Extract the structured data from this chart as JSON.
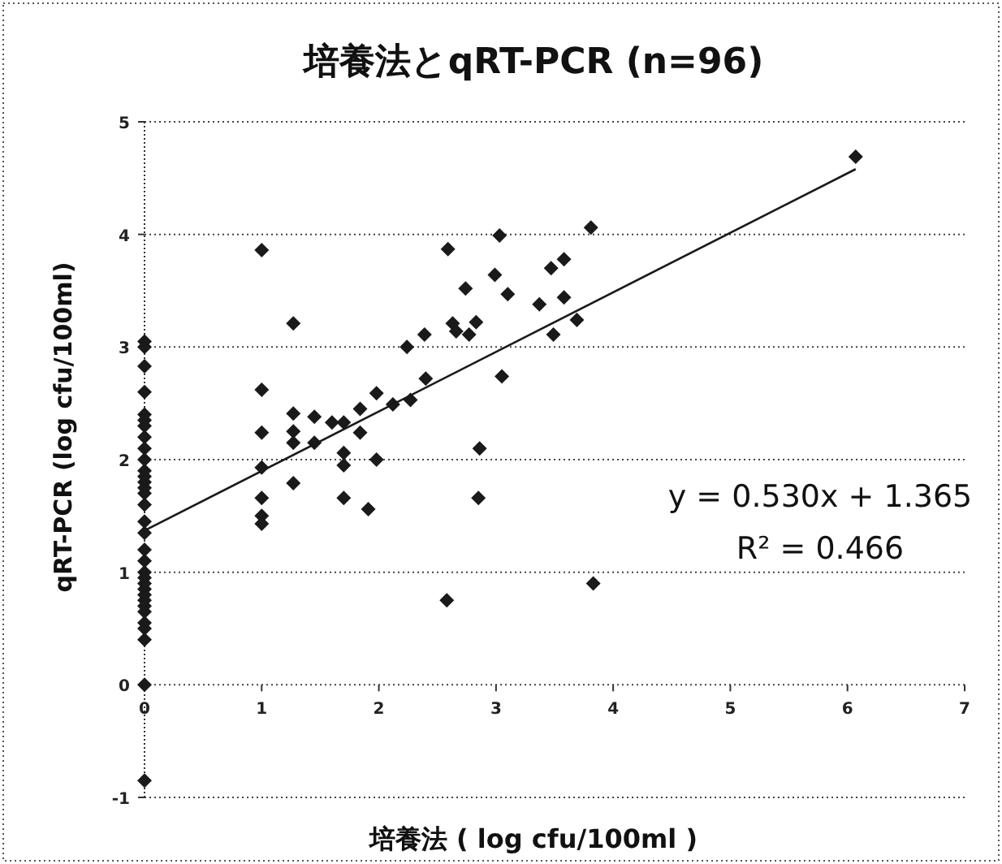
{
  "chart_data": {
    "type": "scatter",
    "title": "培養法とqRT-PCR (n=96)",
    "xlabel": "培養法 (  log cfu/100ml )",
    "ylabel": "qRT-PCR  (log cfu/100ml)",
    "xlim": [
      0,
      7
    ],
    "ylim": [
      -1,
      5
    ],
    "xticks": [
      0,
      1,
      2,
      3,
      4,
      5,
      6,
      7
    ],
    "yticks": [
      -1,
      0,
      1,
      2,
      3,
      4,
      5
    ],
    "grid": "y",
    "marker": "diamond",
    "series": [
      {
        "color": "#1a1a1a",
        "x": [
          0,
          0,
          0,
          0,
          0,
          0,
          0,
          0,
          0,
          0,
          0,
          0,
          0,
          0,
          0,
          0,
          0,
          0,
          0,
          0,
          0,
          0,
          0,
          0,
          0,
          0,
          0,
          0,
          0,
          0,
          0,
          0,
          0,
          1.0,
          1.0,
          1.0,
          1.0,
          1.0,
          1.0,
          1.0,
          1.27,
          1.27,
          1.27,
          1.27,
          1.27,
          1.45,
          1.45,
          1.6,
          1.7,
          1.7,
          1.7,
          1.7,
          1.84,
          1.84,
          1.91,
          1.98,
          1.98,
          2.12,
          2.27,
          2.24,
          2.39,
          2.4,
          2.58,
          2.59,
          2.63,
          2.66,
          2.77,
          2.83,
          2.74,
          2.86,
          2.85,
          2.99,
          3.03,
          3.05,
          3.1,
          3.37,
          3.47,
          3.49,
          3.58,
          3.58,
          3.69,
          3.81,
          3.83,
          6.07
        ],
        "values": [
          3.05,
          3.0,
          2.83,
          2.6,
          2.4,
          2.35,
          2.3,
          2.2,
          2.1,
          2.0,
          1.9,
          1.85,
          1.8,
          1.75,
          1.7,
          1.6,
          1.45,
          1.35,
          1.2,
          1.1,
          1.0,
          0.95,
          0.9,
          0.85,
          0.8,
          0.75,
          0.7,
          0.65,
          0.55,
          0.5,
          0.4,
          0.0,
          -0.85,
          3.86,
          2.62,
          2.24,
          1.93,
          1.66,
          1.5,
          1.43,
          3.21,
          2.41,
          2.25,
          2.15,
          1.79,
          2.38,
          2.15,
          2.33,
          2.33,
          2.06,
          1.95,
          1.66,
          2.24,
          2.45,
          1.56,
          2.59,
          2.0,
          2.49,
          2.53,
          3.0,
          3.11,
          2.72,
          0.75,
          3.87,
          3.21,
          3.14,
          3.11,
          3.22,
          3.52,
          2.1,
          1.66,
          3.64,
          3.99,
          2.74,
          3.47,
          3.38,
          3.7,
          3.11,
          3.78,
          3.44,
          3.24,
          4.06,
          0.9,
          4.69
        ]
      },
      {
        "type": "line",
        "color": "#1a1a1a",
        "x": [
          0,
          6.07
        ],
        "values": [
          1.37,
          4.58
        ],
        "marker": "none"
      }
    ],
    "annotations": [
      "y = 0.530x + 1.365",
      "R² = 0.466"
    ]
  }
}
